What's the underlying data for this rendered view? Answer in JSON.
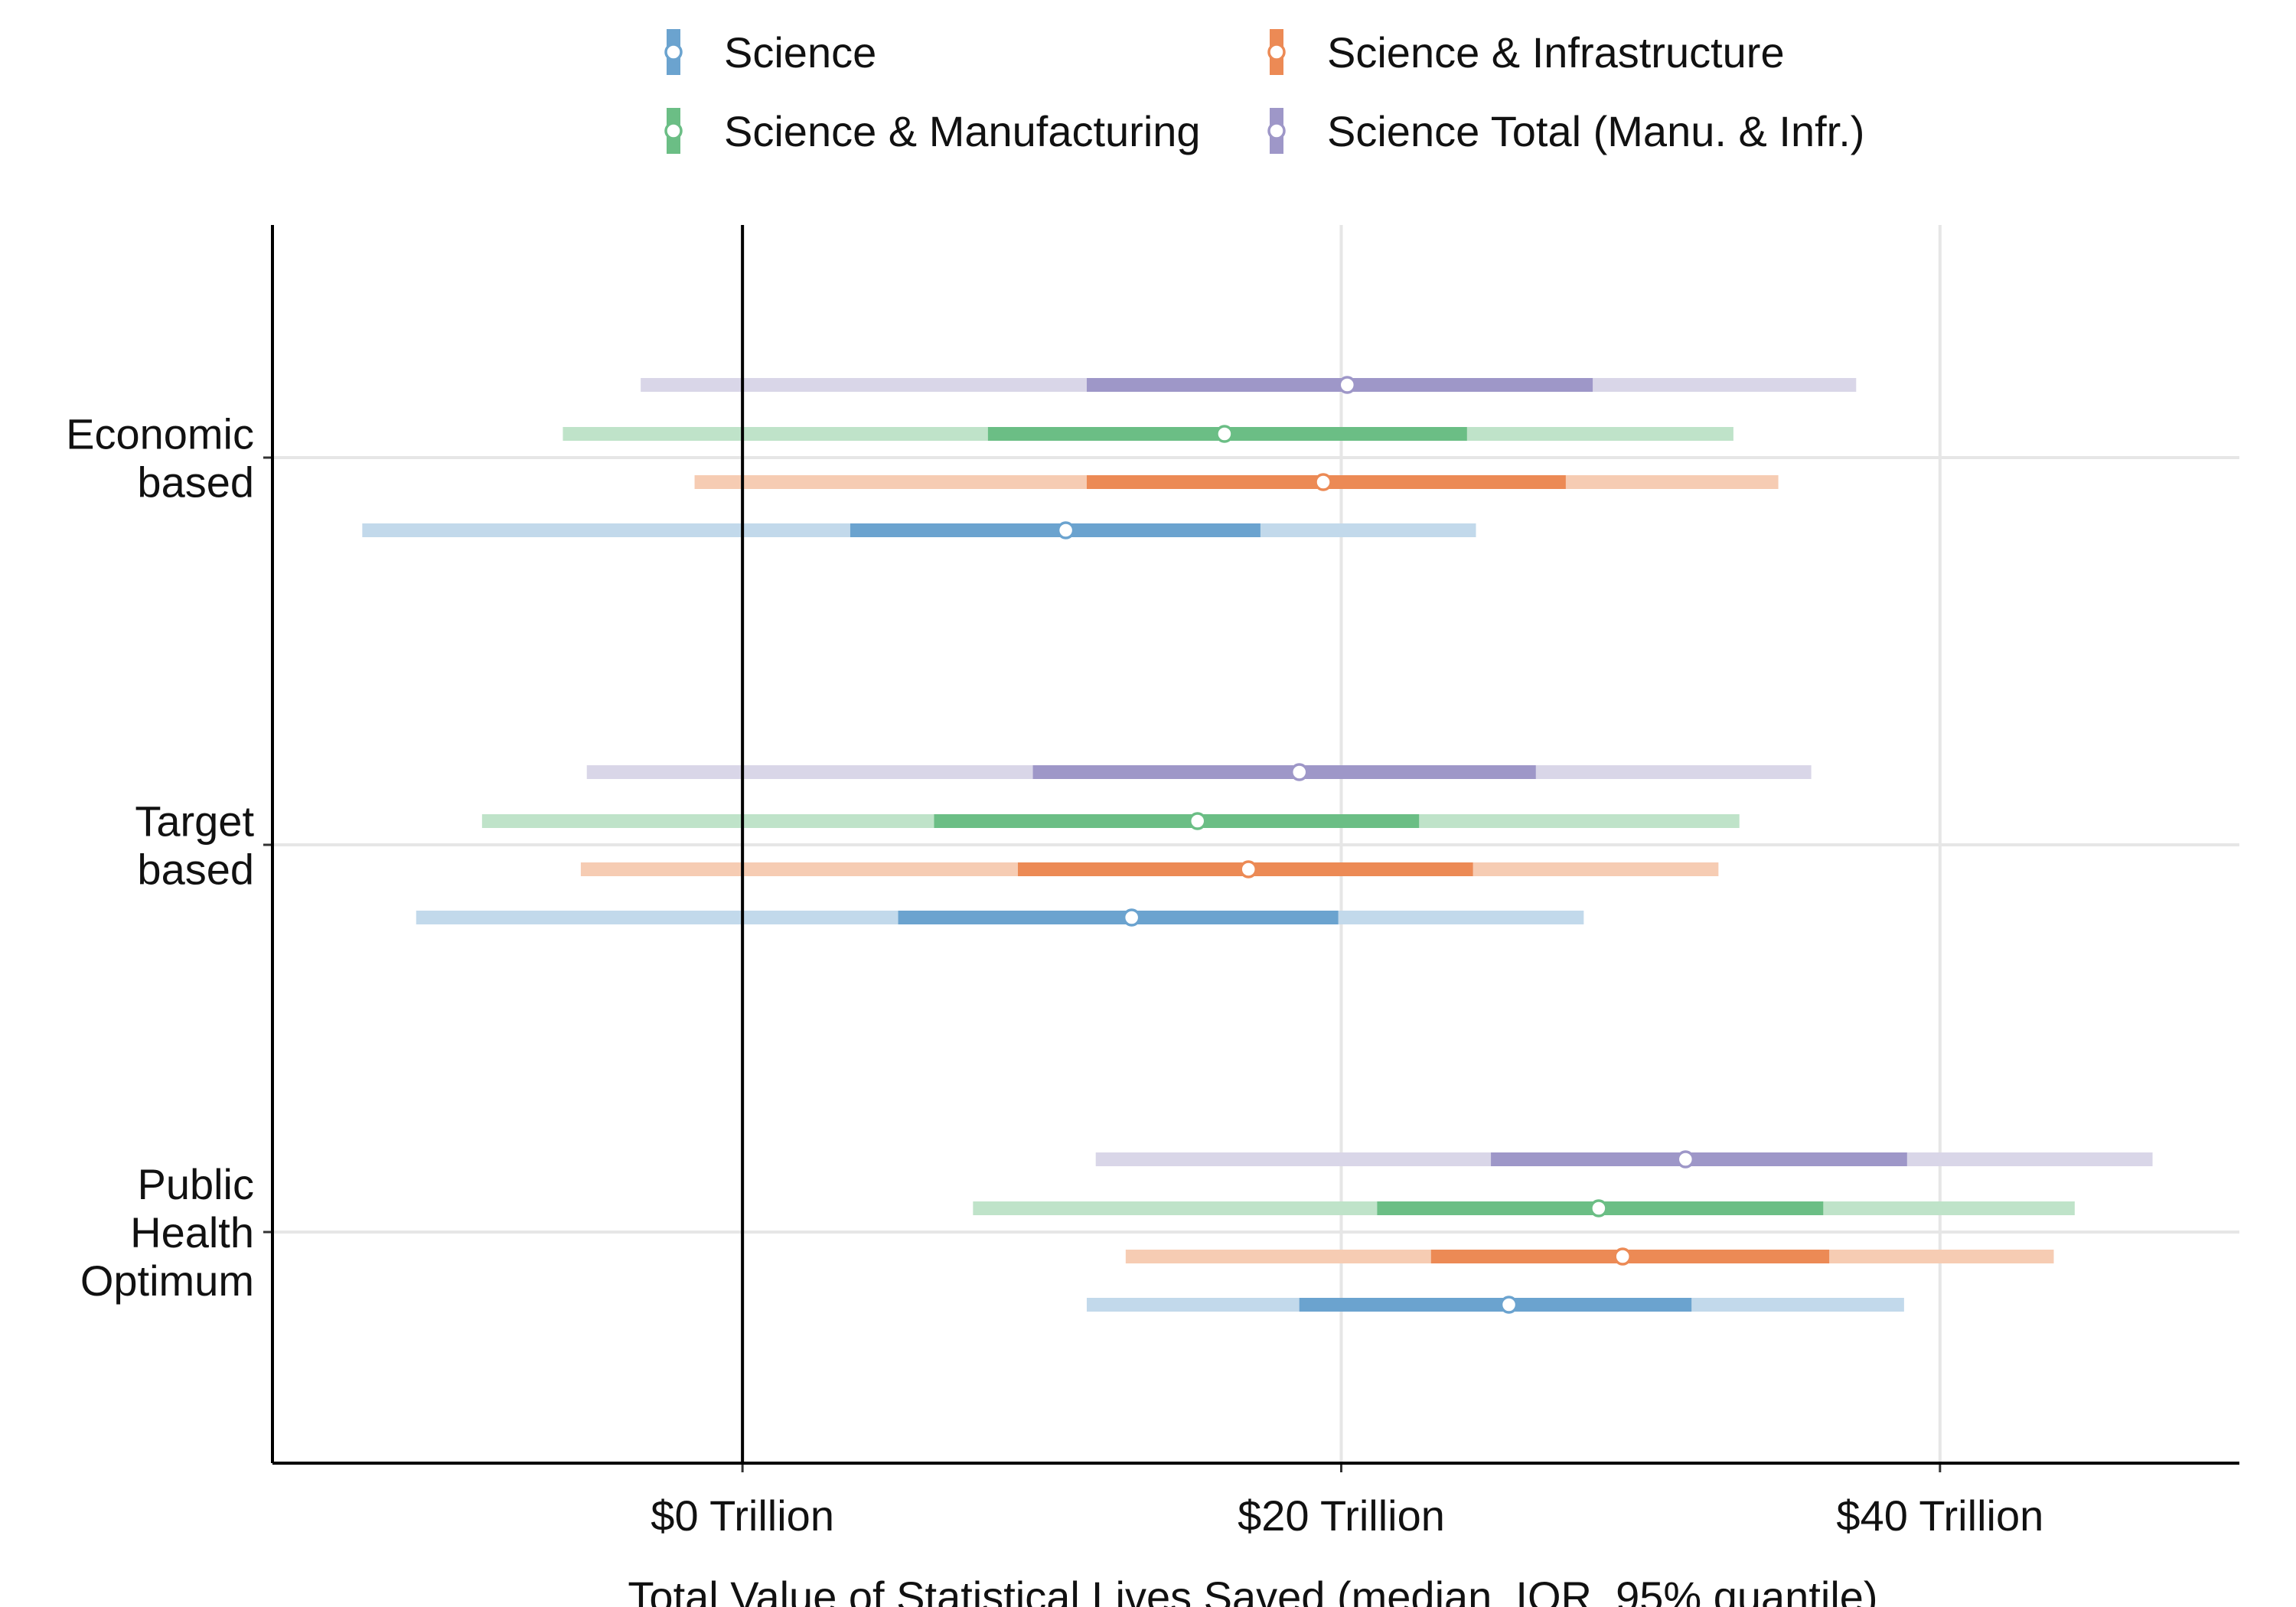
{
  "chart_data": {
    "type": "interval",
    "title": "",
    "xlabel": "Total Value of Statistical Lives Saved (median, IQR, 95% quantile)",
    "ylabel": "",
    "xlim": [
      -15.7,
      50.0
    ],
    "x_ticks": [
      {
        "value": 0,
        "label": "$0 Trillion"
      },
      {
        "value": 20,
        "label": "$20 Trillion"
      },
      {
        "value": 40,
        "label": "$40 Trillion"
      }
    ],
    "reference_line": 0,
    "grid": "vertical and horizontal major",
    "legend_position": "top",
    "groups": [
      {
        "key": "economic",
        "label_lines": [
          "Economic",
          "based"
        ]
      },
      {
        "key": "target",
        "label_lines": [
          "Target",
          "based"
        ]
      },
      {
        "key": "public",
        "label_lines": [
          "Public",
          "Health",
          "Optimum"
        ]
      }
    ],
    "series": [
      {
        "name": "Science",
        "color": "#6BA3CF",
        "light_color": "#C2D9EB",
        "values": [
          {
            "group": "economic",
            "q025": -12.7,
            "q25": 3.6,
            "median": 10.8,
            "q75": 17.3,
            "q975": 24.5
          },
          {
            "group": "target",
            "q025": -10.9,
            "q25": 5.2,
            "median": 13.0,
            "q75": 19.9,
            "q975": 28.1
          },
          {
            "group": "public",
            "q025": 11.5,
            "q25": 18.6,
            "median": 25.6,
            "q75": 31.7,
            "q975": 38.8
          }
        ]
      },
      {
        "name": "Science & Infrastructure",
        "color": "#EC8A55",
        "light_color": "#F6CCB3",
        "values": [
          {
            "group": "economic",
            "q025": -1.6,
            "q25": 11.5,
            "median": 19.4,
            "q75": 27.5,
            "q975": 34.6
          },
          {
            "group": "target",
            "q025": -5.4,
            "q25": 9.2,
            "median": 16.9,
            "q75": 24.4,
            "q975": 32.6
          },
          {
            "group": "public",
            "q025": 12.8,
            "q25": 23.0,
            "median": 29.4,
            "q75": 36.3,
            "q975": 43.8
          }
        ]
      },
      {
        "name": "Science & Manufacturing",
        "color": "#6BBE85",
        "light_color": "#BFE3C9",
        "values": [
          {
            "group": "economic",
            "q025": -6.0,
            "q25": 8.2,
            "median": 16.1,
            "q75": 24.2,
            "q975": 33.1
          },
          {
            "group": "target",
            "q025": -8.7,
            "q25": 6.4,
            "median": 15.2,
            "q75": 22.6,
            "q975": 33.3
          },
          {
            "group": "public",
            "q025": 7.7,
            "q25": 21.2,
            "median": 28.6,
            "q75": 36.1,
            "q975": 44.5
          }
        ]
      },
      {
        "name": "Science Total (Manu. & Infr.)",
        "color": "#9E97C8",
        "light_color": "#D9D6E8",
        "values": [
          {
            "group": "economic",
            "q025": -3.4,
            "q25": 11.5,
            "median": 20.2,
            "q75": 28.4,
            "q975": 37.2
          },
          {
            "group": "target",
            "q025": -5.2,
            "q25": 9.7,
            "median": 18.6,
            "q75": 26.5,
            "q975": 35.7
          },
          {
            "group": "public",
            "q025": 11.8,
            "q25": 25.0,
            "median": 31.5,
            "q75": 38.9,
            "q975": 47.1
          }
        ]
      }
    ],
    "legend": [
      {
        "name": "Science",
        "color": "#6BA3CF"
      },
      {
        "name": "Science & Infrastructure",
        "color": "#EC8A55"
      },
      {
        "name": "Science & Manufacturing",
        "color": "#6BBE85"
      },
      {
        "name": "Science Total (Manu. & Infr.)",
        "color": "#9E97C8"
      }
    ]
  }
}
